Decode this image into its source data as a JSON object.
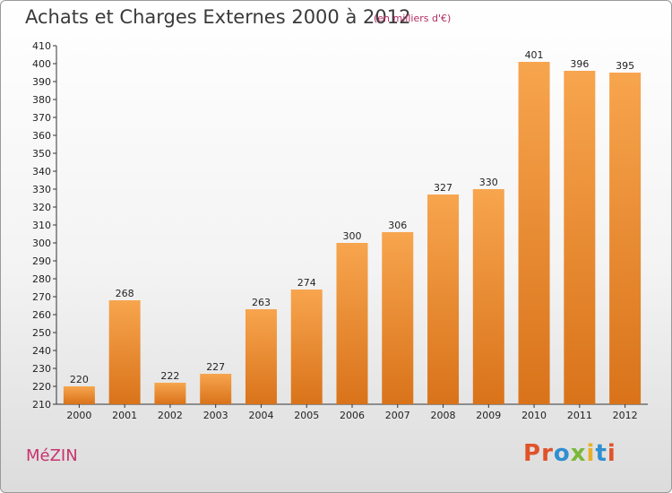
{
  "header": {
    "title": "Achats et Charges Externes 2000 à 2012",
    "subtitle": "(en milliers d'€)"
  },
  "footer": {
    "commune": "MéZIN",
    "logo_letters": [
      {
        "ch": "P",
        "color": "#e0532a"
      },
      {
        "ch": "r",
        "color": "#e0532a"
      },
      {
        "ch": "o",
        "color": "#2f8fd0"
      },
      {
        "ch": "x",
        "color": "#7ab838"
      },
      {
        "ch": "i",
        "color": "#e8b02a"
      },
      {
        "ch": "t",
        "color": "#2f8fd0"
      },
      {
        "ch": "i",
        "color": "#e0532a"
      }
    ]
  },
  "chart_data": {
    "type": "bar",
    "title": "Achats et Charges Externes 2000 à 2012",
    "subtitle": "(en milliers d'€)",
    "categories": [
      "2000",
      "2001",
      "2002",
      "2003",
      "2004",
      "2005",
      "2006",
      "2007",
      "2008",
      "2009",
      "2010",
      "2011",
      "2012"
    ],
    "values": [
      220,
      268,
      222,
      227,
      263,
      274,
      300,
      306,
      327,
      330,
      401,
      396,
      395
    ],
    "ylim": [
      210,
      410
    ],
    "ytick_step": 10,
    "xlabel": "",
    "ylabel": "",
    "grid": false,
    "colors": {
      "bar_light": "#f7a54e",
      "bar_dark": "#d9731a",
      "axis": "#333333"
    }
  }
}
